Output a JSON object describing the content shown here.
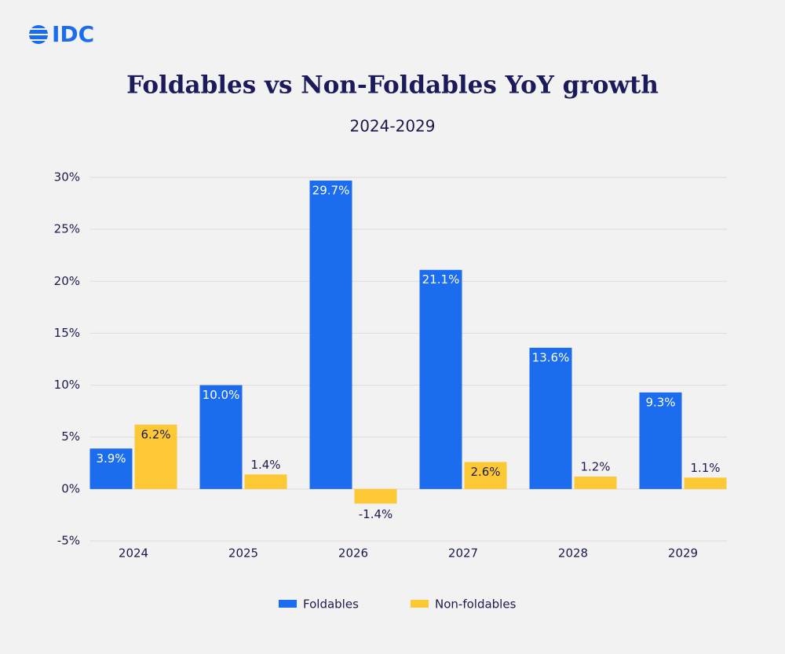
{
  "logo": "IDC",
  "chart_data": {
    "type": "bar",
    "title": "Foldables vs Non-Foldables YoY growth",
    "subtitle": "2024-2029",
    "categories": [
      "2024",
      "2025",
      "2026",
      "2027",
      "2028",
      "2029"
    ],
    "series": [
      {
        "name": "Foldables",
        "color": "#1b6cee",
        "values": [
          3.9,
          10.0,
          29.7,
          21.1,
          13.6,
          9.3
        ],
        "value_labels": [
          "3.9%",
          "10.0%",
          "29.7%",
          "21.1%",
          "13.6%",
          "9.3%"
        ]
      },
      {
        "name": "Non-foldables",
        "color": "#fcc934",
        "values": [
          6.2,
          1.4,
          -1.4,
          2.6,
          1.2,
          1.1
        ],
        "value_labels": [
          "6.2%",
          "1.4%",
          "-1.4%",
          "2.6%",
          "1.2%",
          "1.1%"
        ]
      }
    ],
    "ylim": [
      -5,
      30
    ],
    "yticks": [
      {
        "value": -5,
        "label": "-5%"
      },
      {
        "value": 0,
        "label": "0%"
      },
      {
        "value": 5,
        "label": "5%"
      },
      {
        "value": 10,
        "label": "10%"
      },
      {
        "value": 15,
        "label": "15%"
      },
      {
        "value": 20,
        "label": "20%"
      },
      {
        "value": 25,
        "label": "25%"
      },
      {
        "value": 30,
        "label": "30%"
      }
    ],
    "grid": true,
    "legend": "bottom"
  }
}
